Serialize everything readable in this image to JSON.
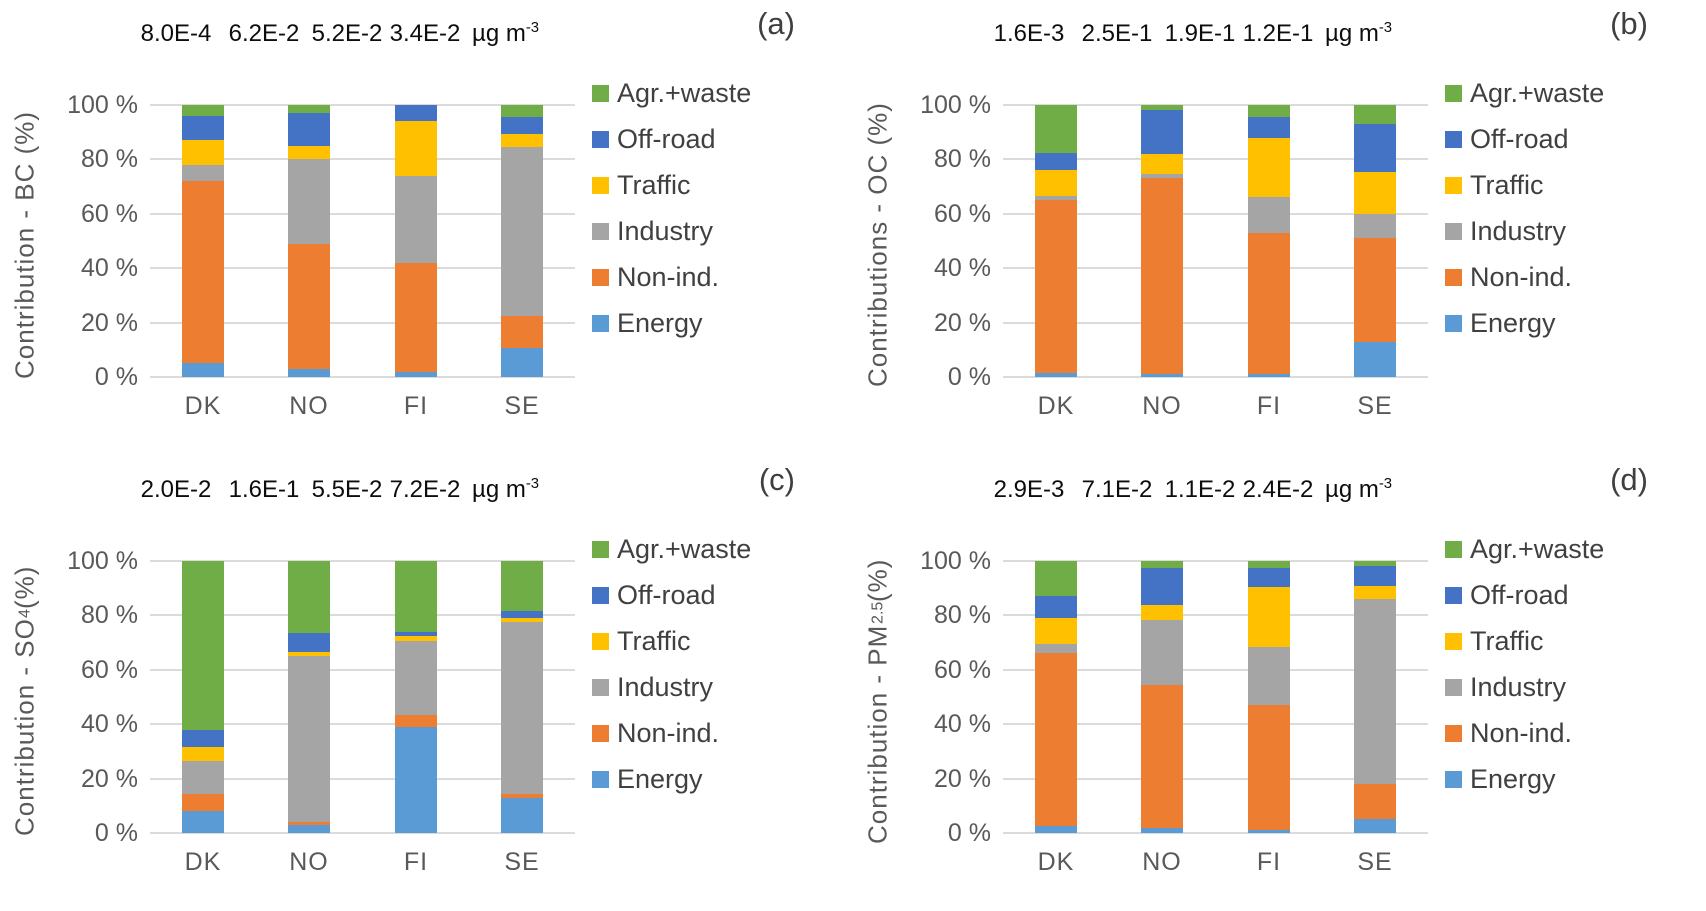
{
  "figure": {
    "background": "#ffffff"
  },
  "legend": {
    "position": "right-of-each-panel",
    "items": [
      {
        "label": "Agr.+waste",
        "color": "#70AD47"
      },
      {
        "label": "Off-road",
        "color": "#4472C4"
      },
      {
        "label": "Traffic",
        "color": "#FFC000"
      },
      {
        "label": "Industry",
        "color": "#A5A5A5"
      },
      {
        "label": "Non-ind.",
        "color": "#ED7D31"
      },
      {
        "label": "Energy",
        "color": "#5B9BD5"
      }
    ]
  },
  "chart_data": [
    {
      "type": "bar",
      "stacked": true,
      "panel_tag": "(a)",
      "ylabel": {
        "pre": "Contribution - BC",
        "sub": "",
        "post": " (%)"
      },
      "title_concentrations": [
        "8.0E-4",
        "6.2E-2",
        "5.2E-2",
        "3.4E-2"
      ],
      "unit": {
        "base": "µg m",
        "sup": "-3"
      },
      "categories": [
        "DK",
        "NO",
        "FI",
        "SE"
      ],
      "yticks": [
        "100 %",
        "80 %",
        "60 %",
        "40 %",
        "20 %",
        "0 %"
      ],
      "ylim": [
        0,
        100
      ],
      "grid": true,
      "series": [
        {
          "name": "Energy",
          "values": [
            5,
            3,
            2,
            10.5
          ]
        },
        {
          "name": "Non-ind.",
          "values": [
            67,
            46,
            40,
            12
          ]
        },
        {
          "name": "Industry",
          "values": [
            6,
            31,
            32,
            62
          ]
        },
        {
          "name": "Traffic",
          "values": [
            9,
            5,
            20,
            5
          ]
        },
        {
          "name": "Off-road",
          "values": [
            9,
            12,
            6,
            6
          ]
        },
        {
          "name": "Agr.+waste",
          "values": [
            4,
            3,
            0,
            4.5
          ]
        }
      ]
    },
    {
      "type": "bar",
      "stacked": true,
      "panel_tag": "(b)",
      "ylabel": {
        "pre": "Contributions - OC",
        "sub": "",
        "post": " (%)"
      },
      "title_concentrations": [
        "1.6E-3",
        "2.5E-1",
        "1.9E-1",
        "1.2E-1"
      ],
      "unit": {
        "base": "µg m",
        "sup": "-3"
      },
      "categories": [
        "DK",
        "NO",
        "FI",
        "SE"
      ],
      "yticks": [
        "100 %",
        "80 %",
        "60 %",
        "40 %",
        "20 %",
        "0 %"
      ],
      "ylim": [
        0,
        100
      ],
      "grid": true,
      "series": [
        {
          "name": "Energy",
          "values": [
            1.5,
            1,
            1,
            13
          ]
        },
        {
          "name": "Non-ind.",
          "values": [
            63.5,
            72,
            52,
            38
          ]
        },
        {
          "name": "Industry",
          "values": [
            1.5,
            1.5,
            13,
            9
          ]
        },
        {
          "name": "Traffic",
          "values": [
            9.5,
            7.5,
            22,
            15.5
          ]
        },
        {
          "name": "Off-road",
          "values": [
            6.5,
            16,
            7.5,
            17.5
          ]
        },
        {
          "name": "Agr.+waste",
          "values": [
            17.5,
            2,
            4.5,
            7
          ]
        }
      ]
    },
    {
      "type": "bar",
      "stacked": true,
      "panel_tag": "(c)",
      "ylabel": {
        "pre": "Contribution - SO",
        "sub": "4",
        "post": " (%)"
      },
      "title_concentrations": [
        "2.0E-2",
        "1.6E-1",
        "5.5E-2",
        "7.2E-2"
      ],
      "unit": {
        "base": "µg m",
        "sup": "-3"
      },
      "categories": [
        "DK",
        "NO",
        "FI",
        "SE"
      ],
      "yticks": [
        "100 %",
        "80 %",
        "60 %",
        "40 %",
        "20 %",
        "0 %"
      ],
      "ylim": [
        0,
        100
      ],
      "grid": true,
      "series": [
        {
          "name": "Energy",
          "values": [
            8,
            3,
            39,
            13
          ]
        },
        {
          "name": "Non-ind.",
          "values": [
            6.5,
            1,
            4.5,
            1.5
          ]
        },
        {
          "name": "Industry",
          "values": [
            12,
            61,
            27,
            63
          ]
        },
        {
          "name": "Traffic",
          "values": [
            5,
            1.5,
            2,
            1.5
          ]
        },
        {
          "name": "Off-road",
          "values": [
            6.5,
            7,
            1.5,
            2.5
          ]
        },
        {
          "name": "Agr.+waste",
          "values": [
            62,
            26.5,
            26,
            18.5
          ]
        }
      ]
    },
    {
      "type": "bar",
      "stacked": true,
      "panel_tag": "(d)",
      "ylabel": {
        "pre": "Contribution - PM",
        "sub": "2.5",
        "post": " (%)"
      },
      "title_concentrations": [
        "2.9E-3",
        "7.1E-2",
        "1.1E-2",
        "2.4E-2"
      ],
      "unit": {
        "base": "µg m",
        "sup": "-3"
      },
      "categories": [
        "DK",
        "NO",
        "FI",
        "SE"
      ],
      "yticks": [
        "100 %",
        "80 %",
        "60 %",
        "40 %",
        "20 %",
        "0 %"
      ],
      "ylim": [
        0,
        100
      ],
      "grid": true,
      "series": [
        {
          "name": "Energy",
          "values": [
            2.5,
            2,
            1,
            5
          ]
        },
        {
          "name": "Non-ind.",
          "values": [
            63.5,
            52.5,
            46,
            13
          ]
        },
        {
          "name": "Industry",
          "values": [
            3.5,
            24,
            21.5,
            68
          ]
        },
        {
          "name": "Traffic",
          "values": [
            9.5,
            5.5,
            22,
            5
          ]
        },
        {
          "name": "Off-road",
          "values": [
            8,
            13.5,
            7,
            7
          ]
        },
        {
          "name": "Agr.+waste",
          "values": [
            13,
            2.5,
            2.5,
            2
          ]
        }
      ]
    }
  ]
}
